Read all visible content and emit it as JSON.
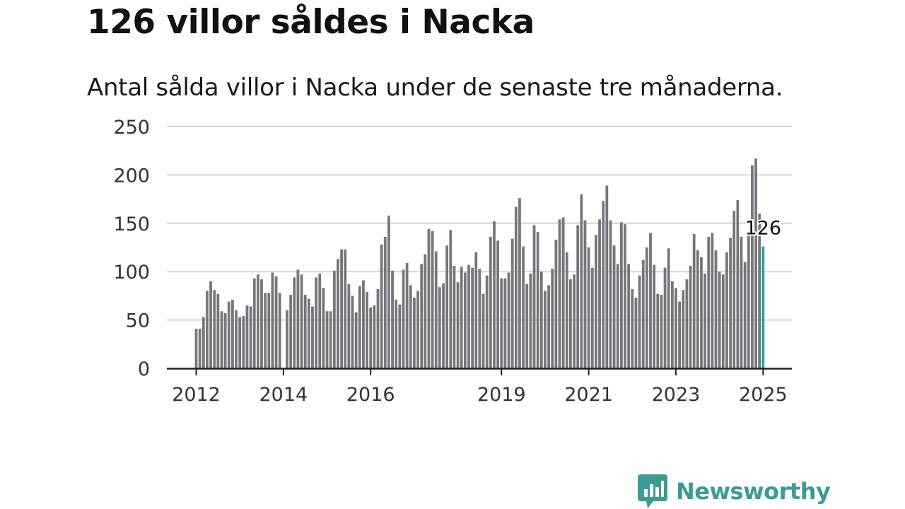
{
  "title": "126 villor såldes i Nacka",
  "subtitle": "Antal sålda villor i Nacka under de senaste tre månaderna.",
  "brand": {
    "name": "Newsworthy",
    "color": "#3d9a96",
    "icon": "bar-chart-speech-bubble-icon"
  },
  "chart_data": {
    "type": "bar",
    "title": "126 villor såldes i Nacka",
    "subtitle": "Antal sålda villor i Nacka under de senaste tre månaderna.",
    "xlabel": "",
    "ylabel": "",
    "x_start": "2012-01",
    "x_step": "month",
    "ylim": [
      0,
      250
    ],
    "yticks": [
      0,
      50,
      100,
      150,
      200,
      250
    ],
    "xticks": [
      {
        "label": "2012",
        "index": 0
      },
      {
        "label": "2014",
        "index": 24
      },
      {
        "label": "2016",
        "index": 48
      },
      {
        "label": "2019",
        "index": 84
      },
      {
        "label": "2021",
        "index": 108
      },
      {
        "label": "2023",
        "index": 132
      },
      {
        "label": "2025",
        "index": 156
      }
    ],
    "grid": true,
    "bar_color": "#76767c",
    "highlight_color": "#23a3a3",
    "highlight_label": "126",
    "values": [
      41,
      41,
      53,
      80,
      90,
      81,
      77,
      59,
      57,
      69,
      71,
      60,
      53,
      54,
      65,
      64,
      93,
      97,
      92,
      78,
      78,
      99,
      95,
      78,
      0,
      60,
      76,
      94,
      102,
      97,
      76,
      72,
      64,
      94,
      98,
      83,
      59,
      59,
      101,
      113,
      123,
      123,
      87,
      75,
      58,
      85,
      91,
      79,
      63,
      65,
      82,
      128,
      136,
      158,
      101,
      71,
      66,
      102,
      109,
      86,
      73,
      80,
      108,
      118,
      144,
      142,
      121,
      84,
      88,
      127,
      143,
      106,
      89,
      105,
      99,
      107,
      104,
      120,
      103,
      77,
      96,
      136,
      152,
      132,
      93,
      93,
      99,
      134,
      167,
      176,
      126,
      87,
      98,
      148,
      141,
      100,
      80,
      86,
      103,
      133,
      154,
      156,
      120,
      92,
      97,
      148,
      180,
      153,
      125,
      104,
      138,
      154,
      173,
      189,
      153,
      127,
      108,
      151,
      149,
      108,
      82,
      73,
      96,
      112,
      125,
      140,
      107,
      77,
      76,
      104,
      124,
      90,
      83,
      69,
      81,
      92,
      106,
      139,
      122,
      115,
      98,
      136,
      140,
      122,
      100,
      97,
      120,
      135,
      163,
      174,
      136,
      110,
      140,
      210,
      217,
      160,
      126
    ]
  }
}
